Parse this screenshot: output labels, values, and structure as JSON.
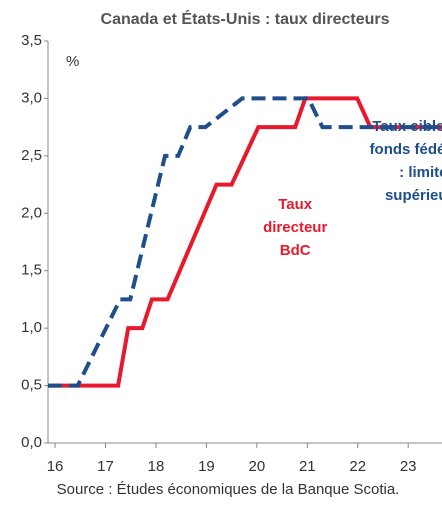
{
  "chart_data": {
    "type": "line",
    "title": "Canada et États-Unis : taux directeurs",
    "y_unit": "%",
    "source": "Source : Études économiques de la Banque Scotia.",
    "xlim": [
      15.86,
      23.67
    ],
    "xticks": [
      16,
      17,
      18,
      19,
      20,
      21,
      22,
      23
    ],
    "ylim": [
      0,
      3.5
    ],
    "yticks": [
      {
        "value": 0,
        "label": "0,0"
      },
      {
        "value": 0.5,
        "label": "0,5"
      },
      {
        "value": 1,
        "label": "1,0"
      },
      {
        "value": 1.5,
        "label": "1,5"
      },
      {
        "value": 2,
        "label": "2,0"
      },
      {
        "value": 2.5,
        "label": "2,5"
      },
      {
        "value": 3,
        "label": "3,0"
      },
      {
        "value": 3.5,
        "label": "3,5"
      }
    ],
    "series": [
      {
        "color": "#e8192c",
        "dashed": false,
        "x": [
          15.86,
          17.25,
          17.45,
          17.73,
          17.92,
          18.23,
          19.2,
          19.5,
          20.03,
          20.76,
          20.96,
          21.99,
          22.25,
          23.67
        ],
        "values": [
          0.5,
          0.5,
          1.0,
          1.0,
          1.25,
          1.25,
          2.25,
          2.25,
          2.75,
          2.75,
          3.0,
          3.0,
          2.75,
          2.75
        ]
      },
      {
        "color": "#1f4e8c",
        "dashed": true,
        "x": [
          15.86,
          16.45,
          17.29,
          17.49,
          18.18,
          18.44,
          18.68,
          18.98,
          19.71,
          21.02,
          21.3,
          23.67
        ],
        "values": [
          0.5,
          0.5,
          1.25,
          1.25,
          2.5,
          2.5,
          2.75,
          2.75,
          3.0,
          3.0,
          2.75,
          2.75
        ]
      }
    ],
    "annotations": [
      {
        "lines": [
          "Taux",
          "directeur",
          "BdC"
        ],
        "color": "#e8192c",
        "x": 20.76,
        "y": 1.87
      },
      {
        "lines": [
          "Taux cible des",
          "fonds fédéraux",
          ": limite",
          "supérieure"
        ],
        "color": "#1f4e8c",
        "x": 23.3,
        "y": 2.45
      }
    ]
  }
}
